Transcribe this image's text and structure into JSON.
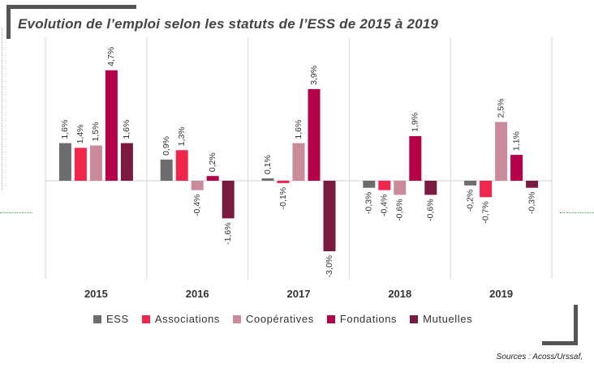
{
  "title": "Evolution de l’emploi selon les statuts de l’ESS de 2015 à 2019",
  "source": "Sources : Acoss/Urssaf,",
  "chart_data": {
    "type": "bar",
    "title": "Evolution de l’emploi selon les statuts de l’ESS de 2015 à 2019",
    "categories": [
      "2015",
      "2016",
      "2017",
      "2018",
      "2019"
    ],
    "series": [
      {
        "name": "ESS",
        "color": "#6d6d6d",
        "values": [
          1.6,
          0.9,
          0.1,
          -0.3,
          -0.2
        ],
        "labels": [
          "1,6%",
          "0,9%",
          "0,1%",
          "-0,3%",
          "-0,2%"
        ]
      },
      {
        "name": "Associations",
        "color": "#f0264d",
        "values": [
          1.4,
          1.3,
          -0.1,
          -0.4,
          -0.7
        ],
        "labels": [
          "1,4%",
          "1,3%",
          "-0,1%",
          "-0,4%",
          "-0,7%"
        ]
      },
      {
        "name": "Coopératives",
        "color": "#c98a9a",
        "values": [
          1.5,
          -0.4,
          1.6,
          -0.6,
          2.5
        ],
        "labels": [
          "1,5%",
          "-0,4%",
          "1,6%",
          "-0,6%",
          "2,5%"
        ]
      },
      {
        "name": "Fondations",
        "color": "#b5004a",
        "values": [
          4.7,
          0.2,
          3.9,
          1.9,
          1.1
        ],
        "labels": [
          "4,7%",
          "0,2%",
          "3,9%",
          "1,9%",
          "1,1%"
        ]
      },
      {
        "name": "Mutuelles",
        "color": "#7a1a40",
        "values": [
          1.6,
          -1.6,
          -3.0,
          -0.6,
          -0.3
        ],
        "labels": [
          "1,6%",
          "-1,6%",
          "-3,0%",
          "-0,6%",
          "-0,3%"
        ]
      }
    ],
    "xlabel": "",
    "ylabel": "",
    "ylim": [
      -3.8,
      5.6
    ],
    "grid": false,
    "legend": "bottom"
  }
}
